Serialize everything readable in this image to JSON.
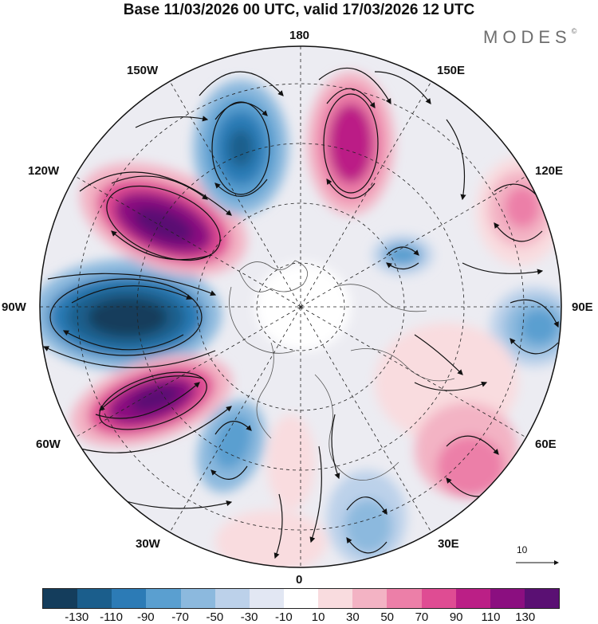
{
  "title": "Base 11/03/2026 00 UTC, valid 17/03/2026 12 UTC",
  "brand": {
    "name": "MODES",
    "mark": "©"
  },
  "longitude_labels": {
    "top": "180",
    "bottom": "0",
    "left": "90W",
    "right": "90E",
    "upper_left_1": "150W",
    "upper_left_2": "120W",
    "lower_left_1": "60W",
    "lower_left_2": "30W",
    "upper_right_1": "150E",
    "upper_right_2": "120E",
    "lower_right_1": "60E",
    "lower_right_2": "30E"
  },
  "vector_reference": {
    "label": "10"
  },
  "colorbar": {
    "colors": [
      "#143d5c",
      "#1b5e8c",
      "#2c7bb6",
      "#5a9fd0",
      "#8cb9de",
      "#bcd1ea",
      "#e2e7f3",
      "#ffffff",
      "#f9dcdf",
      "#f3b3c4",
      "#ec7fa8",
      "#df4c93",
      "#bb1f86",
      "#8b0f80",
      "#5a1073"
    ],
    "tick_labels": [
      "-130",
      "-110",
      "-90",
      "-70",
      "-50",
      "-30",
      "-10",
      "10",
      "30",
      "50",
      "70",
      "90",
      "110",
      "130"
    ]
  }
}
